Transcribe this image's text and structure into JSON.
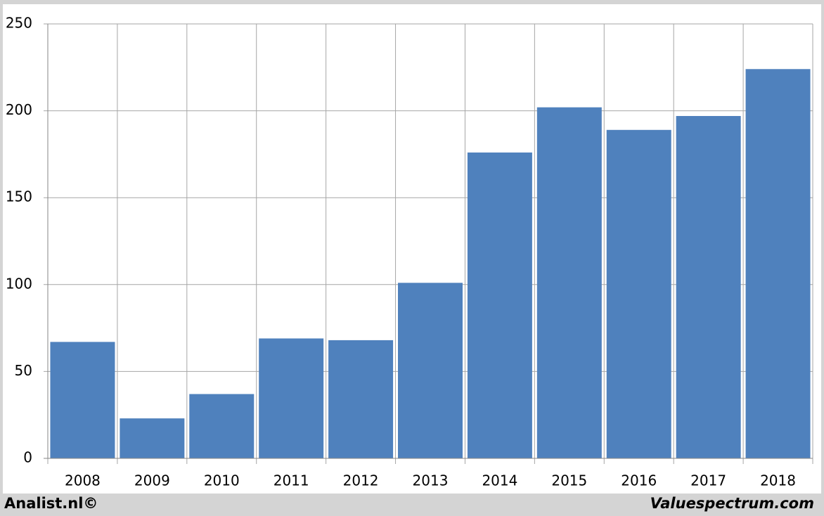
{
  "chart_data": {
    "type": "bar",
    "categories": [
      "2008",
      "2009",
      "2010",
      "2011",
      "2012",
      "2013",
      "2014",
      "2015",
      "2016",
      "2017",
      "2018"
    ],
    "values": [
      67,
      23,
      37,
      69,
      68,
      101,
      176,
      202,
      189,
      197,
      224
    ],
    "color": "#4f81bd",
    "ylim": [
      0,
      250
    ],
    "yticks": [
      0,
      50,
      100,
      150,
      200,
      250
    ],
    "grid": true
  },
  "footer": {
    "left": "Analist.nl©",
    "right": "Valuespectrum.com"
  }
}
